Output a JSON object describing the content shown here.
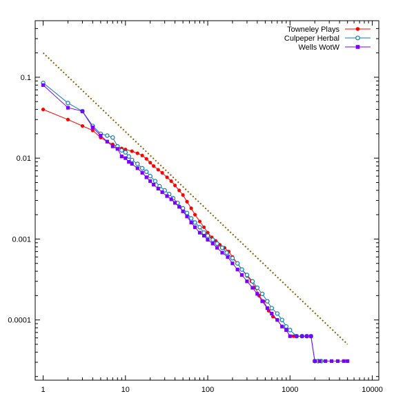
{
  "chart_data": {
    "type": "scatter",
    "title": "",
    "xlabel": "",
    "ylabel": "",
    "x_scale": "log",
    "y_scale": "log",
    "xlim": [
      0.8,
      12000
    ],
    "ylim": [
      1.8e-05,
      0.5
    ],
    "x_ticks": [
      {
        "value": 1,
        "label": "1"
      },
      {
        "value": 10,
        "label": "10"
      },
      {
        "value": 100,
        "label": "100"
      },
      {
        "value": 1000,
        "label": "1000"
      },
      {
        "value": 10000,
        "label": "10000"
      }
    ],
    "y_ticks": [
      {
        "value": 0.1,
        "label": "0.1"
      },
      {
        "value": 0.01,
        "label": "0.01"
      },
      {
        "value": 0.001,
        "label": "0.001"
      },
      {
        "value": 0.0001,
        "label": "0.0001"
      }
    ],
    "grid": false,
    "legend_position": "top-right",
    "series": [
      {
        "name": "Towneley Plays",
        "color": "#ff0000",
        "marker": "filled-circle",
        "x": [
          1,
          2,
          3,
          4,
          5,
          6,
          7,
          8,
          9,
          10,
          12,
          14,
          16,
          18,
          20,
          22,
          25,
          28,
          32,
          36,
          40,
          45,
          50,
          56,
          63,
          70,
          80,
          90,
          100,
          112,
          125,
          140,
          160,
          180,
          200,
          230,
          260,
          300,
          340,
          380,
          420,
          480,
          550,
          620,
          700,
          800,
          900,
          1000,
          1100,
          1200,
          1400,
          1600
        ],
        "y": [
          0.04,
          0.03,
          0.025,
          0.022,
          0.018,
          0.016,
          0.0148,
          0.0138,
          0.0132,
          0.0128,
          0.0122,
          0.0115,
          0.0108,
          0.0098,
          0.0088,
          0.008,
          0.0072,
          0.0066,
          0.0058,
          0.0052,
          0.0046,
          0.004,
          0.0035,
          0.0029,
          0.0024,
          0.002,
          0.00165,
          0.0014,
          0.0012,
          0.00105,
          0.00095,
          0.00085,
          0.00078,
          0.0007,
          0.0006,
          0.0005,
          0.00042,
          0.00035,
          0.0003,
          0.00025,
          0.0002,
          0.00017,
          0.00013,
          0.00011,
          0.0001,
          8.3e-05,
          7.5e-05,
          6.3e-05,
          6.3e-05,
          6.3e-05,
          6.3e-05,
          6.3e-05
        ]
      },
      {
        "name": "Culpeper Herbal",
        "color": "#0a78b4",
        "marker": "open-circle",
        "x": [
          1,
          2,
          3,
          4,
          5,
          6,
          7,
          8,
          9,
          10,
          11,
          12,
          14,
          16,
          18,
          20,
          23,
          26,
          30,
          34,
          38,
          43,
          50,
          56,
          63,
          70,
          80,
          90,
          100,
          115,
          130,
          150,
          170,
          200,
          230,
          260,
          300,
          350,
          400,
          460,
          530,
          600,
          700,
          800,
          900,
          1000,
          1200,
          1400,
          1600,
          1800,
          2000,
          2200,
          2400
        ],
        "y": [
          0.085,
          0.048,
          0.038,
          0.025,
          0.02,
          0.019,
          0.018,
          0.014,
          0.0125,
          0.0118,
          0.0105,
          0.0095,
          0.0085,
          0.0075,
          0.0068,
          0.006,
          0.0052,
          0.0045,
          0.004,
          0.0036,
          0.0032,
          0.0028,
          0.0024,
          0.0021,
          0.0018,
          0.0016,
          0.0014,
          0.0012,
          0.0011,
          0.00098,
          0.00088,
          0.00078,
          0.00068,
          0.00058,
          0.0005,
          0.00042,
          0.00036,
          0.0003,
          0.00025,
          0.00021,
          0.00017,
          0.00014,
          0.00012,
          0.0001,
          8.3e-05,
          7.5e-05,
          6.3e-05,
          6.3e-05,
          6.3e-05,
          6.3e-05,
          3.1e-05,
          3.1e-05,
          3.1e-05
        ]
      },
      {
        "name": "Wells WotW",
        "color": "#7a00ff",
        "marker": "filled-square",
        "x": [
          1,
          2,
          3,
          4,
          5,
          6,
          7,
          8,
          9,
          10,
          11,
          12,
          14,
          16,
          18,
          20,
          22,
          25,
          28,
          32,
          36,
          40,
          45,
          50,
          56,
          63,
          70,
          80,
          90,
          100,
          115,
          130,
          150,
          175,
          200,
          230,
          260,
          300,
          350,
          400,
          460,
          530,
          600,
          700,
          800,
          900,
          1000,
          1200,
          1400,
          1600,
          1800,
          2000,
          2300,
          2700,
          3200,
          3800,
          4500,
          5000
        ],
        "y": [
          0.08,
          0.042,
          0.038,
          0.024,
          0.019,
          0.016,
          0.014,
          0.013,
          0.0105,
          0.01,
          0.009,
          0.0085,
          0.0075,
          0.0066,
          0.0058,
          0.0052,
          0.0047,
          0.0042,
          0.0038,
          0.0034,
          0.0031,
          0.0028,
          0.0025,
          0.0022,
          0.0019,
          0.0016,
          0.0014,
          0.0012,
          0.0011,
          0.00098,
          0.00088,
          0.00078,
          0.00068,
          0.0006,
          0.0005,
          0.00042,
          0.00036,
          0.0003,
          0.00025,
          0.00021,
          0.00017,
          0.00014,
          0.00012,
          0.0001,
          8.3e-05,
          7.5e-05,
          6.3e-05,
          6.3e-05,
          6.3e-05,
          6.3e-05,
          6.3e-05,
          3.1e-05,
          3.1e-05,
          3.1e-05,
          3.1e-05,
          3.1e-05,
          3.1e-05,
          3.1e-05
        ]
      }
    ],
    "reference_line": {
      "color": "#8b5a00",
      "style": "dotted",
      "x": [
        1,
        5000
      ],
      "y": [
        0.2,
        5e-05
      ]
    }
  }
}
